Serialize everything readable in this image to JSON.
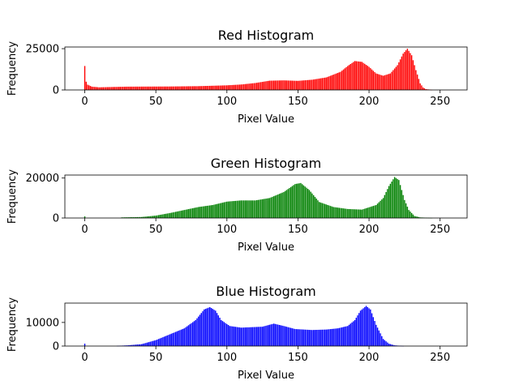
{
  "chart_data": [
    {
      "type": "bar",
      "title": "Red Histogram",
      "xlabel": "Pixel Value",
      "ylabel": "Frequency",
      "color": "#ff0000",
      "xlim": [
        -14,
        269
      ],
      "ylim": [
        0,
        26000
      ],
      "xticks": [
        "0",
        "50",
        "100",
        "150",
        "200",
        "250"
      ],
      "yticks": [
        "0",
        "25000"
      ],
      "anchors": [
        [
          0,
          14500
        ],
        [
          1,
          5000
        ],
        [
          2,
          3200
        ],
        [
          5,
          2000
        ],
        [
          10,
          1600
        ],
        [
          20,
          1800
        ],
        [
          30,
          2000
        ],
        [
          60,
          2100
        ],
        [
          80,
          2300
        ],
        [
          100,
          2800
        ],
        [
          110,
          3300
        ],
        [
          120,
          4200
        ],
        [
          130,
          5600
        ],
        [
          140,
          5800
        ],
        [
          150,
          5500
        ],
        [
          160,
          6200
        ],
        [
          170,
          7600
        ],
        [
          180,
          11000
        ],
        [
          185,
          14500
        ],
        [
          190,
          17500
        ],
        [
          195,
          17000
        ],
        [
          200,
          14000
        ],
        [
          205,
          10000
        ],
        [
          210,
          8600
        ],
        [
          215,
          10000
        ],
        [
          220,
          15000
        ],
        [
          224,
          22000
        ],
        [
          227,
          25000
        ],
        [
          230,
          21000
        ],
        [
          233,
          12000
        ],
        [
          236,
          4000
        ],
        [
          238,
          1500
        ],
        [
          240,
          500
        ],
        [
          245,
          0
        ],
        [
          255,
          0
        ]
      ]
    },
    {
      "type": "bar",
      "title": "Green Histogram",
      "xlabel": "Pixel Value",
      "ylabel": "Frequency",
      "color": "#008000",
      "xlim": [
        -14,
        269
      ],
      "ylim": [
        0,
        21500
      ],
      "xticks": [
        "0",
        "50",
        "100",
        "150",
        "200",
        "250"
      ],
      "yticks": [
        "0",
        "20000"
      ],
      "anchors": [
        [
          0,
          800
        ],
        [
          1,
          0
        ],
        [
          25,
          0
        ],
        [
          26,
          300
        ],
        [
          40,
          500
        ],
        [
          50,
          1200
        ],
        [
          60,
          2500
        ],
        [
          70,
          4000
        ],
        [
          80,
          5500
        ],
        [
          90,
          6500
        ],
        [
          100,
          8200
        ],
        [
          110,
          8800
        ],
        [
          120,
          8800
        ],
        [
          130,
          10000
        ],
        [
          140,
          13000
        ],
        [
          148,
          17000
        ],
        [
          152,
          17500
        ],
        [
          158,
          14000
        ],
        [
          165,
          8000
        ],
        [
          175,
          5500
        ],
        [
          185,
          4500
        ],
        [
          195,
          4200
        ],
        [
          205,
          6500
        ],
        [
          210,
          10000
        ],
        [
          214,
          16000
        ],
        [
          218,
          20500
        ],
        [
          221,
          19000
        ],
        [
          225,
          9000
        ],
        [
          228,
          4000
        ],
        [
          232,
          1000
        ],
        [
          236,
          300
        ],
        [
          245,
          0
        ],
        [
          255,
          0
        ]
      ]
    },
    {
      "type": "bar",
      "title": "Blue Histogram",
      "xlabel": "Pixel Value",
      "ylabel": "Frequency",
      "color": "#0000ff",
      "xlim": [
        -14,
        269
      ],
      "ylim": [
        0,
        18200
      ],
      "xticks": [
        "0",
        "50",
        "100",
        "150",
        "200",
        "250"
      ],
      "yticks": [
        "0",
        "10000"
      ],
      "anchors": [
        [
          0,
          1000
        ],
        [
          1,
          0
        ],
        [
          22,
          0
        ],
        [
          23,
          100
        ],
        [
          30,
          300
        ],
        [
          40,
          800
        ],
        [
          50,
          2500
        ],
        [
          60,
          5000
        ],
        [
          70,
          7500
        ],
        [
          78,
          11000
        ],
        [
          84,
          15500
        ],
        [
          88,
          16500
        ],
        [
          92,
          15000
        ],
        [
          96,
          11000
        ],
        [
          102,
          8500
        ],
        [
          110,
          7800
        ],
        [
          125,
          8200
        ],
        [
          133,
          9500
        ],
        [
          140,
          8500
        ],
        [
          148,
          7200
        ],
        [
          160,
          6800
        ],
        [
          170,
          7000
        ],
        [
          178,
          7500
        ],
        [
          185,
          8500
        ],
        [
          190,
          11000
        ],
        [
          194,
          15000
        ],
        [
          198,
          17000
        ],
        [
          201,
          15500
        ],
        [
          205,
          9000
        ],
        [
          210,
          3000
        ],
        [
          214,
          1000
        ],
        [
          218,
          300
        ],
        [
          225,
          0
        ],
        [
          255,
          0
        ]
      ]
    }
  ]
}
